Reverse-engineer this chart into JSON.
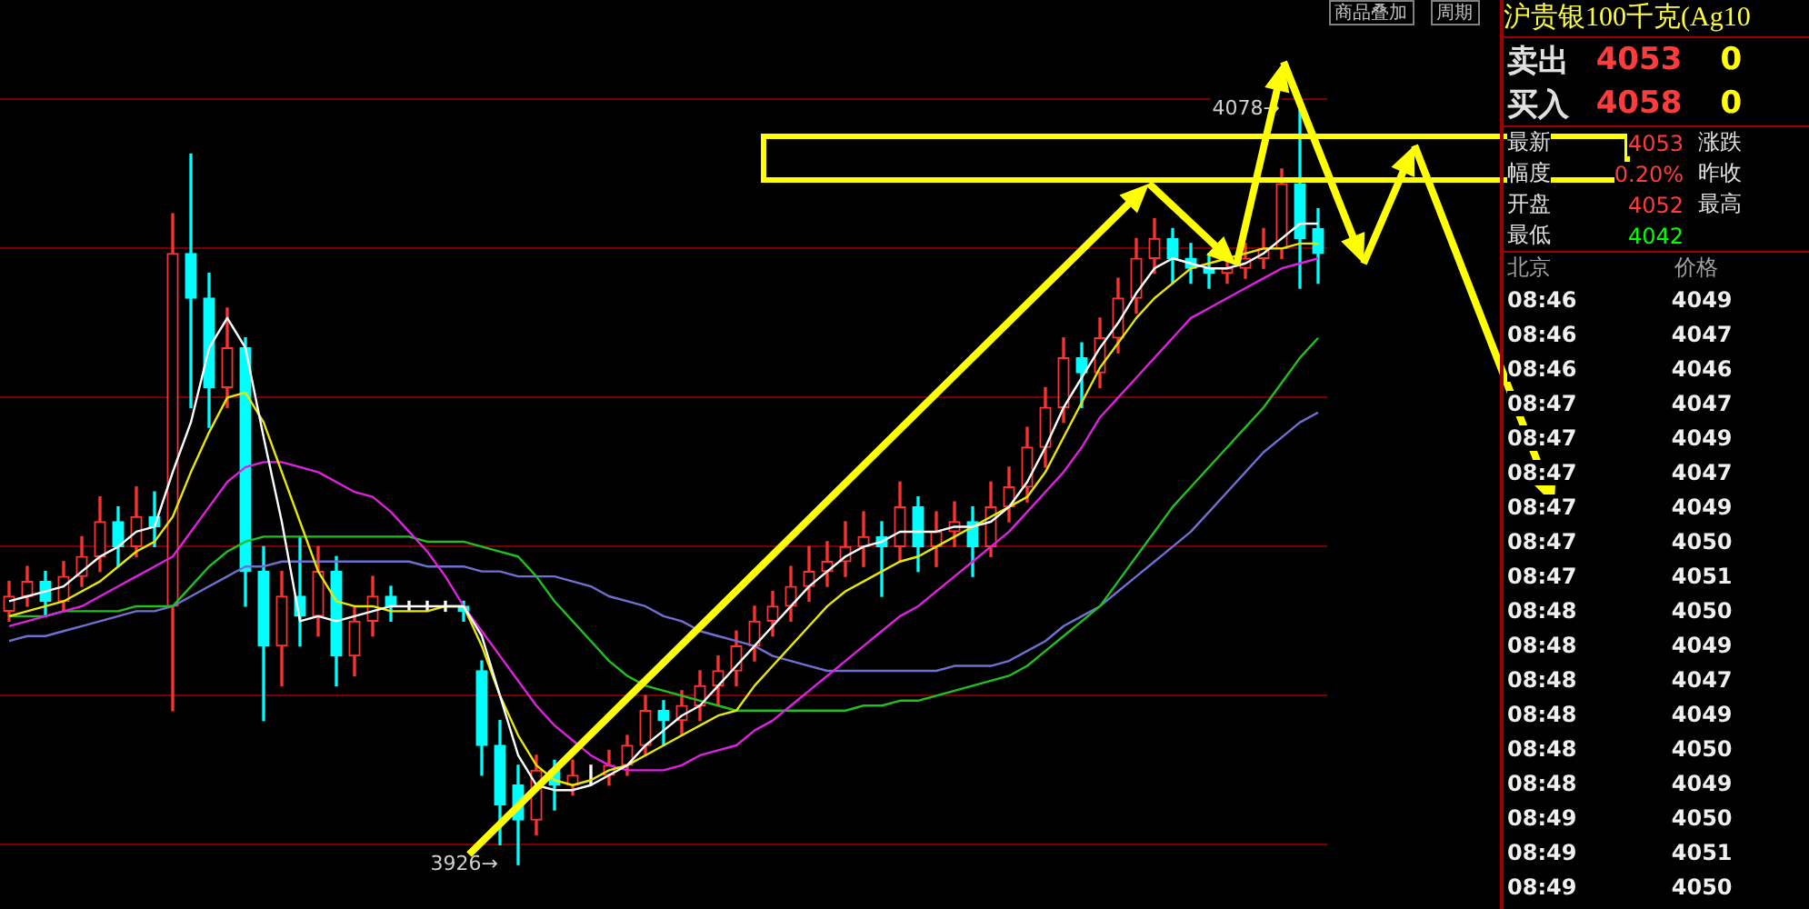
{
  "chart_data": [
    {
      "type": "candlestick",
      "categories": [
        null,
        null,
        null,
        null,
        null,
        null,
        null,
        null,
        null,
        null,
        null,
        null,
        null,
        null,
        null,
        null,
        null,
        null,
        null,
        null,
        null,
        null,
        null,
        null,
        null,
        null,
        null,
        null,
        null,
        null,
        null,
        null,
        null,
        null,
        null,
        null,
        null,
        null,
        null,
        null,
        null,
        null,
        null,
        null,
        null,
        null,
        null,
        null,
        null,
        null,
        null,
        null,
        null,
        null,
        null,
        null,
        null,
        null,
        null,
        null,
        null,
        null,
        null,
        null,
        null,
        null,
        null,
        null,
        null,
        null,
        null,
        null,
        null
      ],
      "ohlc": [
        [
          3977,
          3983,
          3975,
          3980
        ],
        [
          3980,
          3986,
          3978,
          3983
        ],
        [
          3983,
          3985,
          3976,
          3979
        ],
        [
          3979,
          3987,
          3977,
          3984
        ],
        [
          3984,
          3992,
          3982,
          3988
        ],
        [
          3988,
          4000,
          3985,
          3995
        ],
        [
          3995,
          3998,
          3986,
          3990
        ],
        [
          3990,
          4002,
          3988,
          3996
        ],
        [
          3996,
          4001,
          3990,
          3994
        ],
        [
          3978,
          4057,
          3957,
          4049
        ],
        [
          4049,
          4069,
          4018,
          4040
        ],
        [
          4040,
          4045,
          4014,
          4022
        ],
        [
          4022,
          4038,
          4018,
          4030
        ],
        [
          4030,
          4032,
          3978,
          3985
        ],
        [
          3985,
          3990,
          3955,
          3970
        ],
        [
          3970,
          3985,
          3962,
          3980
        ],
        [
          3980,
          3992,
          3970,
          3976
        ],
        [
          3976,
          3990,
          3972,
          3985
        ],
        [
          3985,
          3988,
          3962,
          3968
        ],
        [
          3968,
          3978,
          3964,
          3975
        ],
        [
          3975,
          3984,
          3972,
          3980
        ],
        [
          3980,
          3982,
          3975,
          3978
        ],
        [
          3978,
          3979,
          3977,
          3978
        ],
        [
          3978,
          3979,
          3977,
          3978
        ],
        [
          3978,
          3979,
          3977,
          3978
        ],
        [
          3978,
          3979,
          3975,
          3977
        ],
        [
          3965,
          3967,
          3944,
          3950
        ],
        [
          3950,
          3955,
          3930,
          3938
        ],
        [
          3942,
          3946,
          3926,
          3935
        ],
        [
          3935,
          3948,
          3932,
          3945
        ],
        [
          3945,
          3947,
          3937,
          3942
        ],
        [
          3942,
          3947,
          3940,
          3944
        ],
        [
          3944,
          3946,
          3942,
          3944
        ],
        [
          3944,
          3949,
          3942,
          3946
        ],
        [
          3946,
          3952,
          3944,
          3950
        ],
        [
          3950,
          3960,
          3948,
          3957
        ],
        [
          3957,
          3959,
          3950,
          3955
        ],
        [
          3955,
          3961,
          3952,
          3958
        ],
        [
          3958,
          3965,
          3955,
          3962
        ],
        [
          3962,
          3968,
          3958,
          3965
        ],
        [
          3965,
          3973,
          3962,
          3970
        ],
        [
          3970,
          3978,
          3967,
          3975
        ],
        [
          3975,
          3981,
          3972,
          3978
        ],
        [
          3978,
          3986,
          3975,
          3982
        ],
        [
          3982,
          3990,
          3979,
          3985
        ],
        [
          3985,
          3991,
          3982,
          3987
        ],
        [
          3987,
          3995,
          3984,
          3990
        ],
        [
          3990,
          3997,
          3986,
          3992
        ],
        [
          3992,
          3995,
          3980,
          3990
        ],
        [
          3990,
          4003,
          3987,
          3998
        ],
        [
          3998,
          4000,
          3985,
          3990
        ],
        [
          3990,
          3997,
          3986,
          3993
        ],
        [
          3993,
          3999,
          3990,
          3995
        ],
        [
          3995,
          3998,
          3984,
          3990
        ],
        [
          3990,
          4003,
          3988,
          3998
        ],
        [
          3998,
          4006,
          3995,
          4002
        ],
        [
          4002,
          4014,
          3999,
          4010
        ],
        [
          4010,
          4022,
          4006,
          4018
        ],
        [
          4018,
          4032,
          4015,
          4028
        ],
        [
          4028,
          4031,
          4018,
          4025
        ],
        [
          4025,
          4036,
          4022,
          4032
        ],
        [
          4032,
          4044,
          4029,
          4040
        ],
        [
          4040,
          4052,
          4037,
          4048
        ],
        [
          4048,
          4056,
          4045,
          4052
        ],
        [
          4052,
          4054,
          4043,
          4048
        ],
        [
          4048,
          4051,
          4043,
          4046
        ],
        [
          4046,
          4049,
          4042,
          4045
        ],
        [
          4045,
          4050,
          4043,
          4046
        ],
        [
          4046,
          4051,
          4044,
          4048
        ],
        [
          4048,
          4054,
          4046,
          4050
        ],
        [
          4050,
          4066,
          4048,
          4063
        ],
        [
          4063,
          4078,
          4042,
          4052
        ],
        [
          4054,
          4058,
          4043,
          4049
        ]
      ],
      "colors": [
        "#ff3232",
        "#ff3232",
        "#00ffff",
        "#ff3232",
        "#ff3232",
        "#ff3232",
        "#00ffff",
        "#ff3232",
        "#00ffff",
        "#ff3232",
        "#00ffff",
        "#00ffff",
        "#ff3232",
        "#00ffff",
        "#00ffff",
        "#ff3232",
        "#00ffff",
        "#ff3232",
        "#00ffff",
        "#ff3232",
        "#ff3232",
        "#00ffff",
        "#ffffff",
        "#ffffff",
        "#ffffff",
        "#00ffff",
        "#00ffff",
        "#00ffff",
        "#00ffff",
        "#ff3232",
        "#00ffff",
        "#ff3232",
        "#ffffff",
        "#ff3232",
        "#ff3232",
        "#ff3232",
        "#00ffff",
        "#ff3232",
        "#ff3232",
        "#ff3232",
        "#ff3232",
        "#ff3232",
        "#ff3232",
        "#ff3232",
        "#ff3232",
        "#ff3232",
        "#ff3232",
        "#ff3232",
        "#00ffff",
        "#ff3232",
        "#00ffff",
        "#ff3232",
        "#ff3232",
        "#00ffff",
        "#ff3232",
        "#ff3232",
        "#ff3232",
        "#ff3232",
        "#ff3232",
        "#00ffff",
        "#ff3232",
        "#ff3232",
        "#ff3232",
        "#ff3232",
        "#00ffff",
        "#00ffff",
        "#00ffff",
        "#ff3232",
        "#ff3232",
        "#ff3232",
        "#ff3232",
        "#00ffff",
        "#00ffff"
      ],
      "series": [
        {
          "type": "line",
          "color": "#ffffff",
          "values": [
            3979,
            3980,
            3981,
            3982,
            3985,
            3988,
            3990,
            3993,
            3994,
            4005,
            4015,
            4030,
            4036,
            4030,
            4012,
            3995,
            3975,
            3976,
            3975,
            3976,
            3977,
            3978,
            3978,
            3978,
            3978,
            3978,
            3972,
            3960,
            3948,
            3942,
            3941,
            3941,
            3942,
            3944,
            3946,
            3950,
            3953,
            3956,
            3958,
            3962,
            3966,
            3970,
            3974,
            3978,
            3982,
            3985,
            3988,
            3990,
            3991,
            3993,
            3993,
            3993,
            3994,
            3994,
            3995,
            3998,
            4003,
            4010,
            4018,
            4024,
            4030,
            4035,
            4041,
            4046,
            4048,
            4047,
            4046,
            4046,
            4047,
            4049,
            4052,
            4055,
            4055
          ]
        },
        {
          "type": "line",
          "color": "#e8e800",
          "values": [
            3976,
            3977,
            3978,
            3979,
            3981,
            3983,
            3986,
            3989,
            3991,
            3996,
            4005,
            4013,
            4020,
            4021,
            4015,
            4005,
            3995,
            3985,
            3979,
            3978,
            3978,
            3977,
            3977,
            3977,
            3978,
            3978,
            3970,
            3960,
            3952,
            3946,
            3943,
            3942,
            3943,
            3945,
            3946,
            3948,
            3950,
            3952,
            3954,
            3956,
            3957,
            3962,
            3966,
            3970,
            3974,
            3978,
            3981,
            3983,
            3985,
            3987,
            3988,
            3990,
            3992,
            3994,
            3996,
            3998,
            4000,
            4005,
            4012,
            4019,
            4026,
            4031,
            4036,
            4040,
            4043,
            4046,
            4047,
            4048,
            4049,
            4050,
            4050,
            4051,
            4051
          ]
        },
        {
          "type": "line",
          "color": "#e020e0",
          "values": [
            3974,
            3975,
            3976,
            3977,
            3978,
            3980,
            3982,
            3984,
            3986,
            3988,
            3993,
            3998,
            4003,
            4006,
            4007,
            4007,
            4006,
            4005,
            4003,
            4001,
            4000,
            3997,
            3993,
            3989,
            3984,
            3978,
            3973,
            3968,
            3963,
            3958,
            3954,
            3951,
            3948,
            3946,
            3945,
            3945,
            3945,
            3946,
            3948,
            3949,
            3950,
            3953,
            3955,
            3958,
            3961,
            3964,
            3967,
            3970,
            3973,
            3976,
            3978,
            3981,
            3984,
            3987,
            3990,
            3993,
            3997,
            4001,
            4005,
            4010,
            4016,
            4020,
            4024,
            4028,
            4032,
            4036,
            4038,
            4040,
            4042,
            4044,
            4046,
            4047,
            4048
          ]
        },
        {
          "type": "line",
          "color": "#20c020",
          "values": [
            3976,
            3976,
            3976,
            3977,
            3977,
            3977,
            3977,
            3978,
            3978,
            3978,
            3982,
            3986,
            3989,
            3991,
            3992,
            3992,
            3992,
            3992,
            3992,
            3992,
            3992,
            3992,
            3992,
            3991,
            3991,
            3991,
            3990,
            3989,
            3988,
            3984,
            3979,
            3975,
            3971,
            3967,
            3964,
            3962,
            3961,
            3960,
            3959,
            3958,
            3957,
            3957,
            3957,
            3957,
            3957,
            3957,
            3957,
            3958,
            3958,
            3959,
            3959,
            3960,
            3961,
            3962,
            3963,
            3964,
            3966,
            3969,
            3972,
            3975,
            3978,
            3983,
            3988,
            3993,
            3998,
            4002,
            4006,
            4010,
            4014,
            4018,
            4023,
            4028,
            4032
          ]
        },
        {
          "type": "line",
          "color": "#7070d0",
          "values": [
            3971,
            3972,
            3972,
            3973,
            3974,
            3975,
            3976,
            3977,
            3977,
            3978,
            3980,
            3982,
            3984,
            3986,
            3986,
            3987,
            3987,
            3987,
            3987,
            3987,
            3987,
            3987,
            3987,
            3986,
            3986,
            3986,
            3985,
            3985,
            3984,
            3984,
            3984,
            3983,
            3982,
            3980,
            3979,
            3978,
            3976,
            3975,
            3973,
            3972,
            3971,
            3970,
            3968,
            3967,
            3966,
            3965,
            3965,
            3965,
            3965,
            3965,
            3965,
            3965,
            3966,
            3966,
            3966,
            3967,
            3969,
            3971,
            3974,
            3976,
            3978,
            3981,
            3984,
            3987,
            3990,
            3993,
            3997,
            4001,
            4005,
            4009,
            4012,
            4015,
            4017
          ]
        }
      ],
      "yticks": [
        {
          "value": 3930,
          "label": null
        },
        {
          "value": 3960,
          "label": null
        },
        {
          "value": 3990,
          "label": null
        },
        {
          "value": 4020,
          "label": null
        },
        {
          "value": 4050,
          "label": null
        },
        {
          "value": 4080,
          "label": null
        }
      ],
      "grid": "y",
      "tick_labels": false,
      "annotations": [
        "商品叠加",
        "周期",
        "4078→",
        "3926→"
      ]
    },
    {
      "type": "other",
      "title": "沪贵银100千克(Ag10",
      "annotations": [
        "卖出",
        "4053",
        "0",
        "买入",
        "4058",
        "0",
        "最新",
        "4053",
        "涨跌",
        "幅度",
        "0.20%",
        "昨收",
        "开盘",
        "4052",
        "最高",
        "最低",
        "4042",
        "北京",
        "价格",
        "08:46",
        "4049",
        "08:46",
        "4047",
        "08:46",
        "4046",
        "08:47",
        "4047",
        "08:47",
        "4049",
        "08:47",
        "4047",
        "08:47",
        "4049",
        "08:47",
        "4050",
        "08:47",
        "4051",
        "08:48",
        "4050",
        "08:48",
        "4049",
        "08:48",
        "4047",
        "08:48",
        "4049",
        "08:48",
        "4050",
        "08:48",
        "4049",
        "08:49",
        "4050",
        "08:49",
        "4051",
        "08:49",
        "4050"
      ]
    }
  ]
}
